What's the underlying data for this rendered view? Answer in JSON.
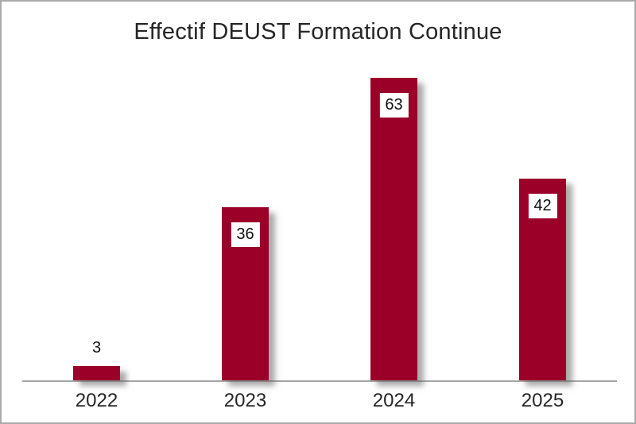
{
  "chart_data": {
    "type": "bar",
    "title": "Effectif DEUST Formation Continue",
    "categories": [
      "2022",
      "2023",
      "2024",
      "2025"
    ],
    "values": [
      3,
      36,
      63,
      42
    ],
    "xlabel": "",
    "ylabel": "",
    "ylim": [
      0,
      63
    ],
    "grid": false,
    "legend": false,
    "data_labels": true,
    "data_label_style": "white box, black text, inside top of bar (outside above bar when bar too short)"
  },
  "colors": {
    "bar": "#9A0028",
    "axis": "#A6A6A6",
    "border": "#ABABAB",
    "title_text": "#262626",
    "label_text": "#111111",
    "label_bg": "#FFFFFF",
    "background": "#FFFFFF"
  }
}
